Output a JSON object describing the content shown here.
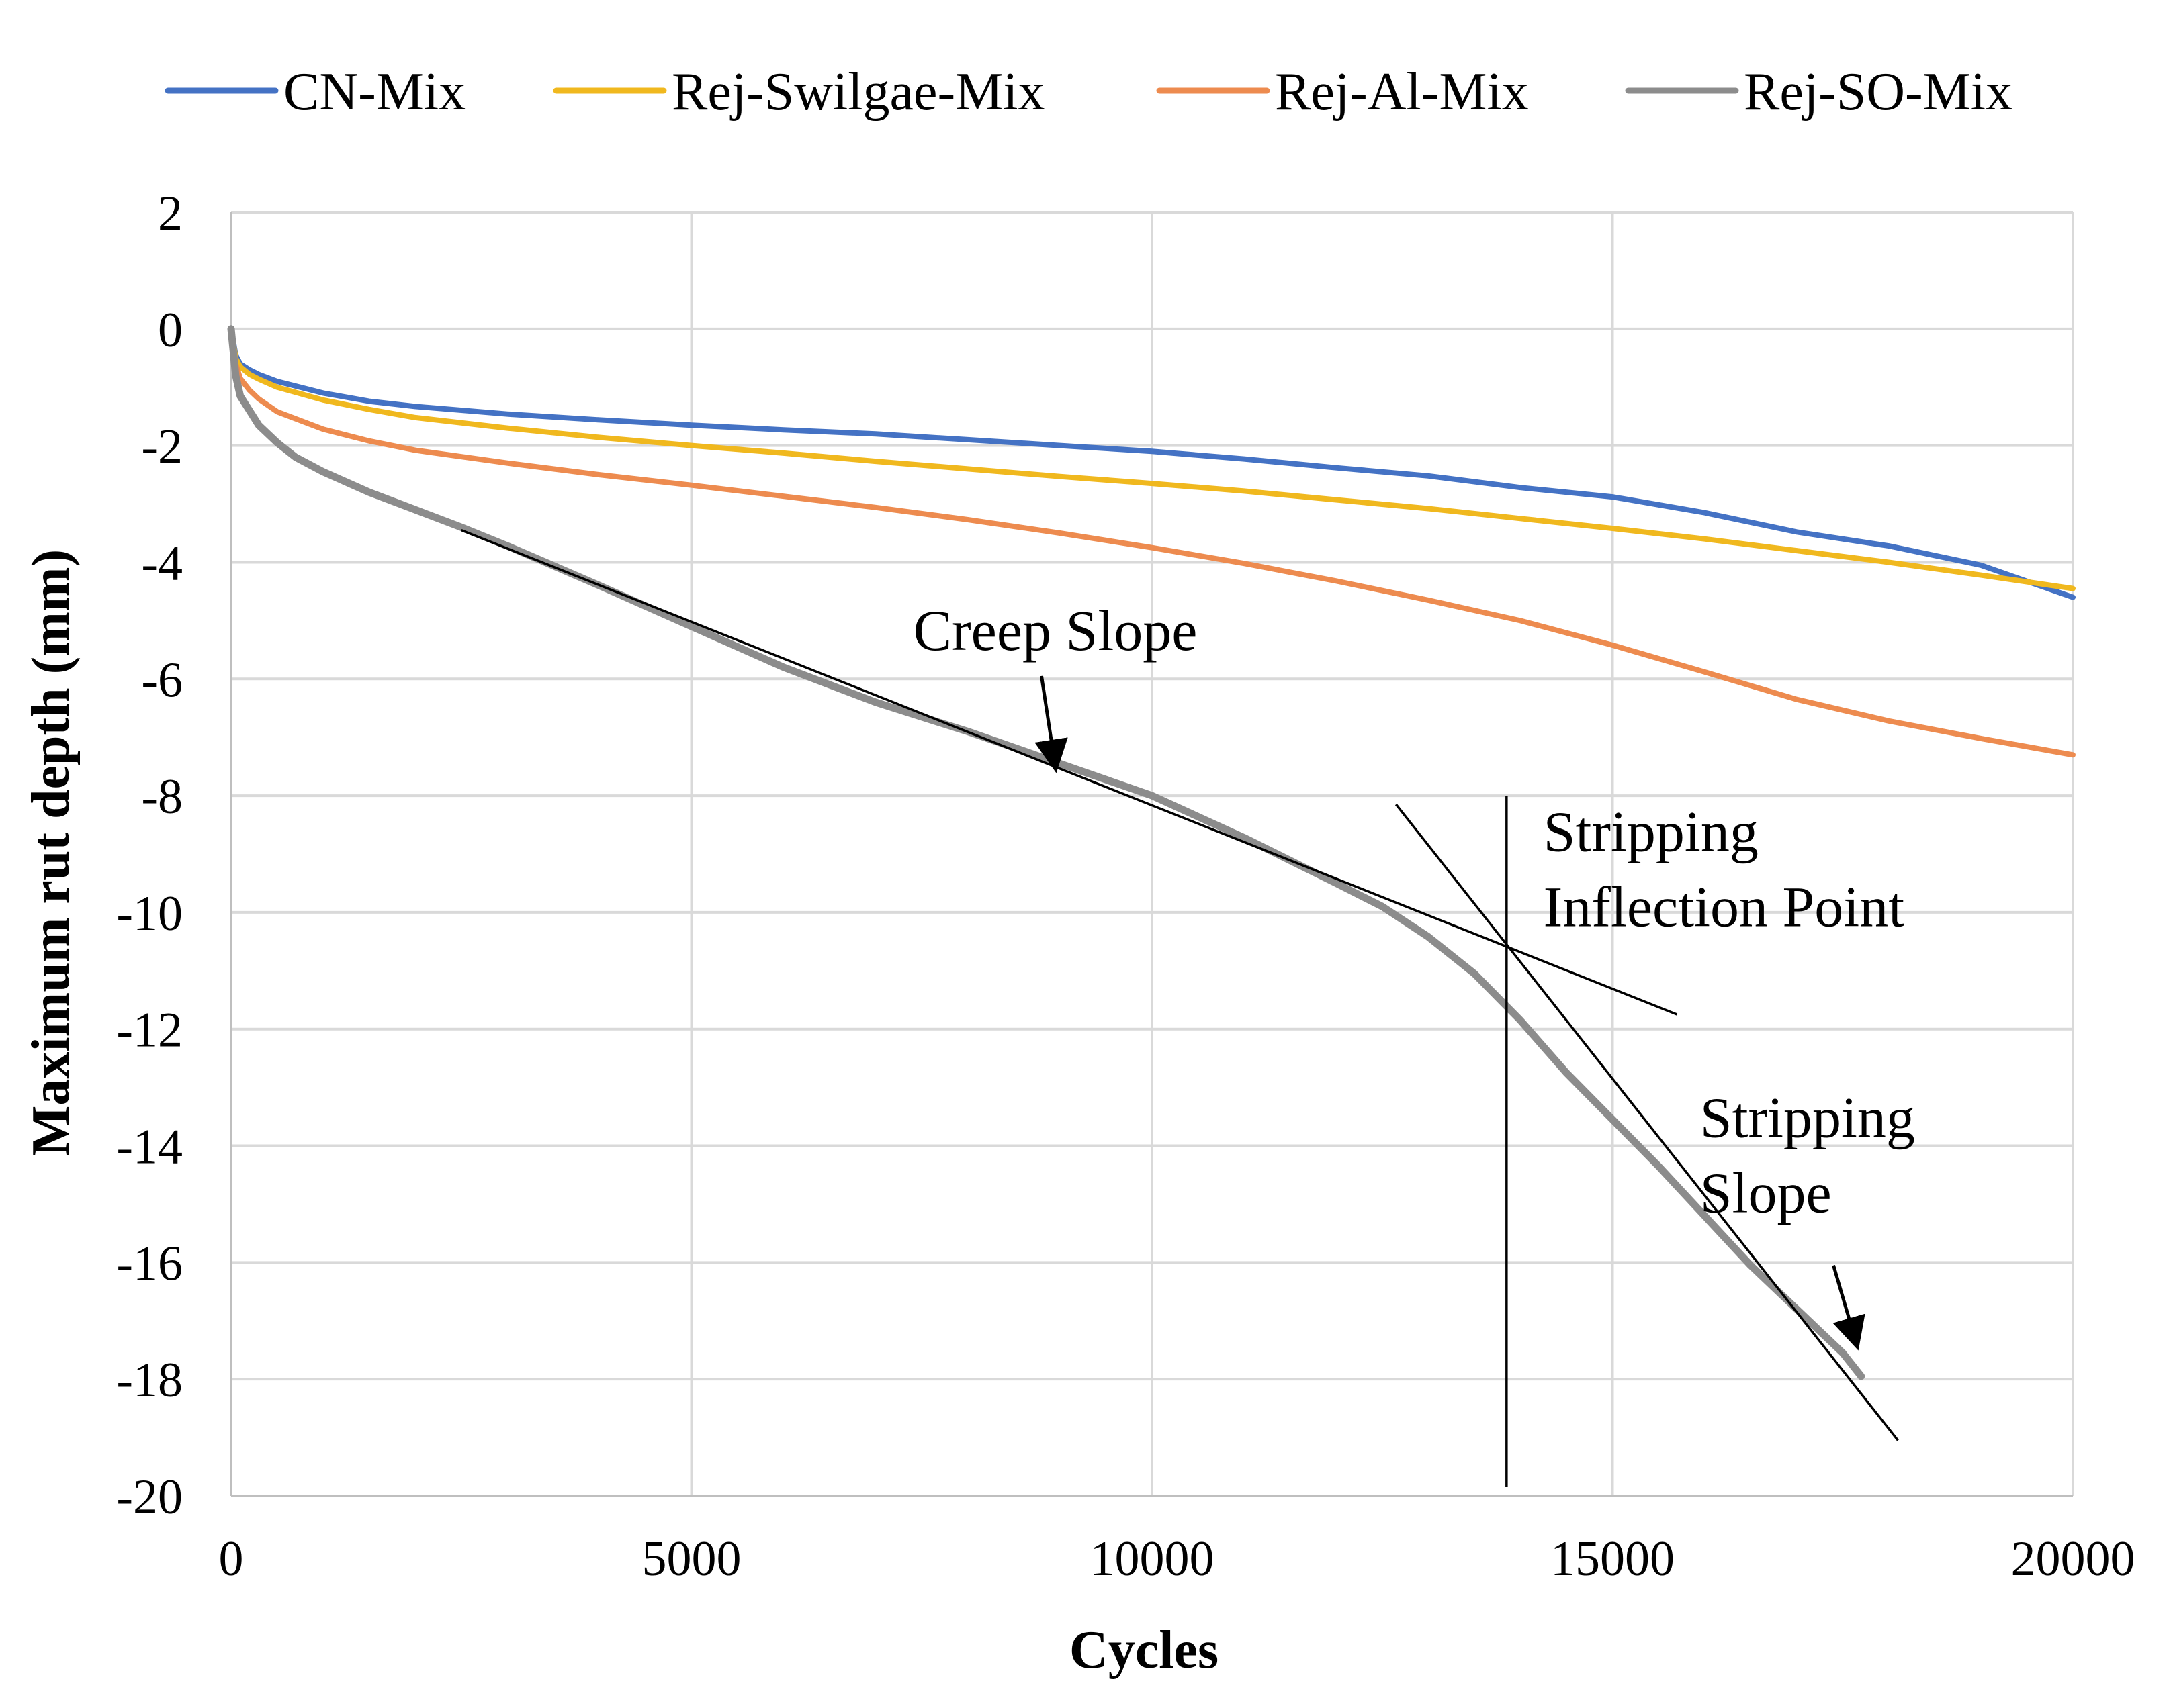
{
  "chart_data": {
    "type": "line",
    "title": "",
    "xlabel": "Cycles",
    "ylabel": "Maximum rut depth (mm)",
    "xlim": [
      0,
      20000
    ],
    "ylim": [
      -20,
      2
    ],
    "xticks": [
      0,
      5000,
      10000,
      15000,
      20000
    ],
    "yticks": [
      2,
      0,
      -2,
      -4,
      -6,
      -8,
      -10,
      -12,
      -14,
      -16,
      -18,
      -20
    ],
    "grid": true,
    "legend_position": "top",
    "series": [
      {
        "name": "CN-Mix",
        "color": "#4472C4",
        "x": [
          0,
          50,
          100,
          200,
          300,
          500,
          1000,
          1500,
          2000,
          3000,
          4000,
          5000,
          6000,
          7000,
          8000,
          9000,
          10000,
          11000,
          12000,
          13000,
          14000,
          15000,
          16000,
          17000,
          18000,
          19000,
          20000
        ],
        "y": [
          0,
          -0.45,
          -0.6,
          -0.7,
          -0.78,
          -0.9,
          -1.1,
          -1.24,
          -1.33,
          -1.46,
          -1.56,
          -1.65,
          -1.73,
          -1.8,
          -1.9,
          -2.0,
          -2.1,
          -2.23,
          -2.38,
          -2.52,
          -2.72,
          -2.88,
          -3.15,
          -3.48,
          -3.72,
          -4.05,
          -4.6
        ]
      },
      {
        "name": "Rej-Swilgae-Mix",
        "color": "#F0B81E",
        "x": [
          0,
          50,
          100,
          200,
          300,
          500,
          1000,
          1500,
          2000,
          3000,
          4000,
          5000,
          6000,
          7000,
          8000,
          9000,
          10000,
          11000,
          12000,
          13000,
          14000,
          15000,
          16000,
          17000,
          18000,
          19000,
          20000
        ],
        "y": [
          0,
          -0.5,
          -0.65,
          -0.78,
          -0.86,
          -1.0,
          -1.22,
          -1.38,
          -1.52,
          -1.7,
          -1.86,
          -2.0,
          -2.13,
          -2.27,
          -2.4,
          -2.53,
          -2.65,
          -2.78,
          -2.93,
          -3.08,
          -3.25,
          -3.42,
          -3.6,
          -3.8,
          -4.0,
          -4.22,
          -4.45
        ]
      },
      {
        "name": "Rej-Al-Mix",
        "color": "#ED8B4F",
        "x": [
          0,
          50,
          100,
          200,
          300,
          500,
          1000,
          1500,
          2000,
          3000,
          4000,
          5000,
          6000,
          7000,
          8000,
          9000,
          10000,
          11000,
          12000,
          13000,
          14000,
          15000,
          16000,
          17000,
          18000,
          19000,
          20000
        ],
        "y": [
          0,
          -0.6,
          -0.85,
          -1.05,
          -1.2,
          -1.42,
          -1.72,
          -1.92,
          -2.08,
          -2.3,
          -2.5,
          -2.68,
          -2.87,
          -3.06,
          -3.27,
          -3.5,
          -3.75,
          -4.02,
          -4.32,
          -4.65,
          -5.0,
          -5.42,
          -5.88,
          -6.35,
          -6.72,
          -7.02,
          -7.3
        ]
      },
      {
        "name": "Rej-SO-Mix",
        "color": "#8C8C8C",
        "x": [
          0,
          50,
          100,
          200,
          300,
          500,
          700,
          1000,
          1500,
          2000,
          2500,
          3000,
          4000,
          5000,
          6000,
          7000,
          8000,
          9000,
          10000,
          11000,
          12000,
          12500,
          13000,
          13500,
          14000,
          14500,
          15000,
          15500,
          16000,
          16500,
          17000,
          17500,
          17700
        ],
        "y": [
          0,
          -0.8,
          -1.15,
          -1.4,
          -1.65,
          -1.95,
          -2.2,
          -2.45,
          -2.8,
          -3.1,
          -3.4,
          -3.72,
          -4.4,
          -5.1,
          -5.8,
          -6.4,
          -6.9,
          -7.45,
          -8.0,
          -8.72,
          -9.5,
          -9.9,
          -10.42,
          -11.05,
          -11.85,
          -12.75,
          -13.55,
          -14.35,
          -15.2,
          -16.05,
          -16.8,
          -17.55,
          -17.95
        ]
      }
    ],
    "annotation_lines": [
      {
        "name": "creep-slope-line",
        "x": [
          2500,
          15700
        ],
        "y": [
          -3.45,
          -11.75
        ]
      },
      {
        "name": "stripping-slope-line",
        "x": [
          12650,
          18100
        ],
        "y": [
          -8.15,
          -19.05
        ]
      },
      {
        "name": "inflection-vertical-line",
        "x": [
          13850,
          13850
        ],
        "y": [
          -8.0,
          -19.85
        ]
      }
    ],
    "annotations": [
      {
        "name": "creep-slope",
        "lines": [
          "Creep Slope"
        ],
        "text_at": [
          8950,
          -5.5
        ],
        "arrow_from": [
          8800,
          -5.95
        ],
        "arrow_to": [
          8950,
          -7.5
        ]
      },
      {
        "name": "stripping-inflection-point",
        "lines": [
          "Stripping",
          "Inflection Point"
        ],
        "text_at": [
          14250,
          -8.95
        ]
      },
      {
        "name": "stripping-slope",
        "lines": [
          "Stripping",
          "Slope"
        ],
        "text_at": [
          15950,
          -13.85
        ],
        "arrow_from": [
          17400,
          -16.05
        ],
        "arrow_to": [
          17650,
          -17.4
        ]
      }
    ]
  }
}
